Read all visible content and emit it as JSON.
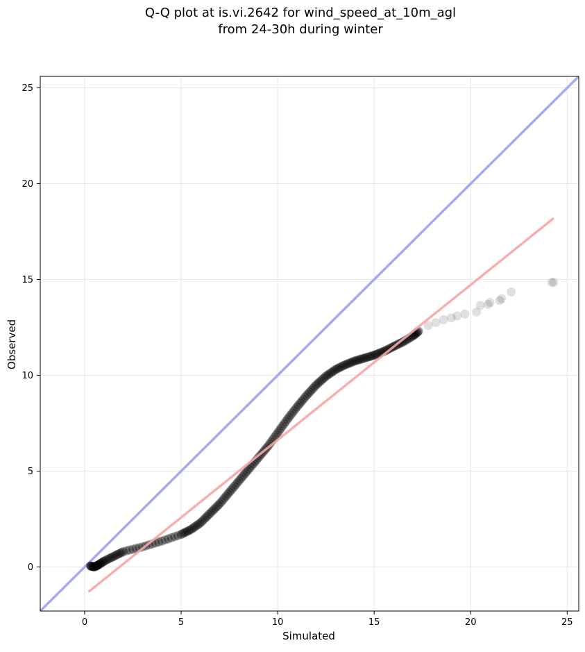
{
  "chart_data": {
    "type": "scatter",
    "title_lines": [
      "Q-Q plot at is.vi.2642 for wind_speed_at_10m_agl",
      "from 24-30h during winter"
    ],
    "xlabel": "Simulated",
    "ylabel": "Observed",
    "xlim": [
      -2.3,
      25.6
    ],
    "ylim": [
      -2.3,
      25.6
    ],
    "xticks": [
      0,
      5,
      10,
      15,
      20,
      25
    ],
    "yticks": [
      0,
      5,
      10,
      15,
      20,
      25
    ],
    "grid": true,
    "colors": {
      "points": "#000000",
      "identity_line": "#a6a8f2",
      "fit_line": "#f4a6a6",
      "grid": "#e6e6e6"
    },
    "identity_line": {
      "x": [
        -2.3,
        25.6
      ],
      "y": [
        -2.3,
        25.6
      ]
    },
    "fit_line": {
      "x": [
        0.2,
        24.3
      ],
      "y": [
        -1.3,
        18.2
      ]
    },
    "quantile_curve": {
      "x": [
        0.3,
        0.5,
        0.7,
        1.0,
        1.5,
        2.0,
        3.0,
        4.0,
        5.0,
        5.5,
        6.0,
        6.5,
        7.0,
        7.5,
        8.0,
        8.5,
        9.0,
        9.5,
        10.0,
        10.5,
        11.0,
        11.5,
        12.0,
        12.5,
        13.0,
        13.5,
        14.0,
        14.5,
        15.0,
        15.5,
        16.0,
        16.5,
        17.0,
        17.3
      ],
      "y": [
        0.05,
        0.0,
        0.1,
        0.3,
        0.55,
        0.8,
        1.05,
        1.35,
        1.7,
        1.95,
        2.3,
        2.8,
        3.3,
        3.9,
        4.5,
        5.1,
        5.7,
        6.3,
        7.0,
        7.7,
        8.35,
        8.95,
        9.5,
        9.95,
        10.3,
        10.55,
        10.75,
        10.9,
        11.05,
        11.25,
        11.5,
        11.75,
        12.05,
        12.3
      ]
    },
    "tail_points": {
      "x": [
        17.8,
        18.2,
        18.6,
        19.0,
        19.3,
        19.7,
        20.3,
        20.5,
        20.9,
        21.0,
        21.5,
        21.6,
        22.1,
        24.2,
        24.3
      ],
      "y": [
        12.6,
        12.75,
        12.9,
        13.0,
        13.1,
        13.2,
        13.3,
        13.65,
        13.7,
        13.8,
        13.9,
        14.0,
        14.35,
        14.85,
        14.85
      ]
    }
  }
}
